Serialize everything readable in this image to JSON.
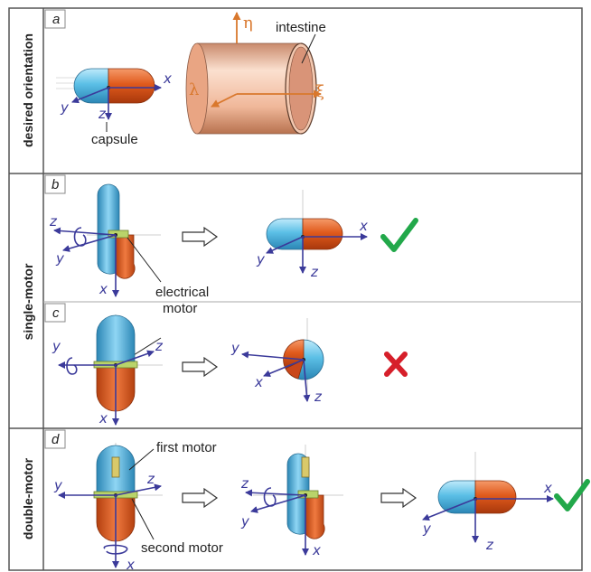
{
  "rows": [
    {
      "side_label": "desired orientation"
    },
    {
      "side_label": "single-motor"
    },
    {
      "side_label": "double-motor"
    }
  ],
  "panels": [
    "a",
    "b",
    "c",
    "d"
  ],
  "annotations": {
    "intestine": "intestine",
    "capsule": "capsule",
    "electrical_motor_line1": "electrical",
    "electrical_motor_line2": "motor",
    "first_motor": "first motor",
    "second_motor": "second motor"
  },
  "axes": {
    "x": "x",
    "y": "y",
    "z": "z"
  },
  "intestine_axes": {
    "eta": "η",
    "lambda": "λ",
    "xi": "ξ"
  },
  "results": {
    "b": "✓",
    "c": "✗",
    "d": "✓"
  },
  "colors": {
    "capsule_blue": "#5bbfe6",
    "capsule_orange": "#e05a1c",
    "axis_blue": "#3b3a9a",
    "intestine": "#f0b89a",
    "intestine_axis": "#d9782d",
    "motor": "#b9d46a",
    "check": "#22a84a",
    "cross": "#d61f2a"
  }
}
